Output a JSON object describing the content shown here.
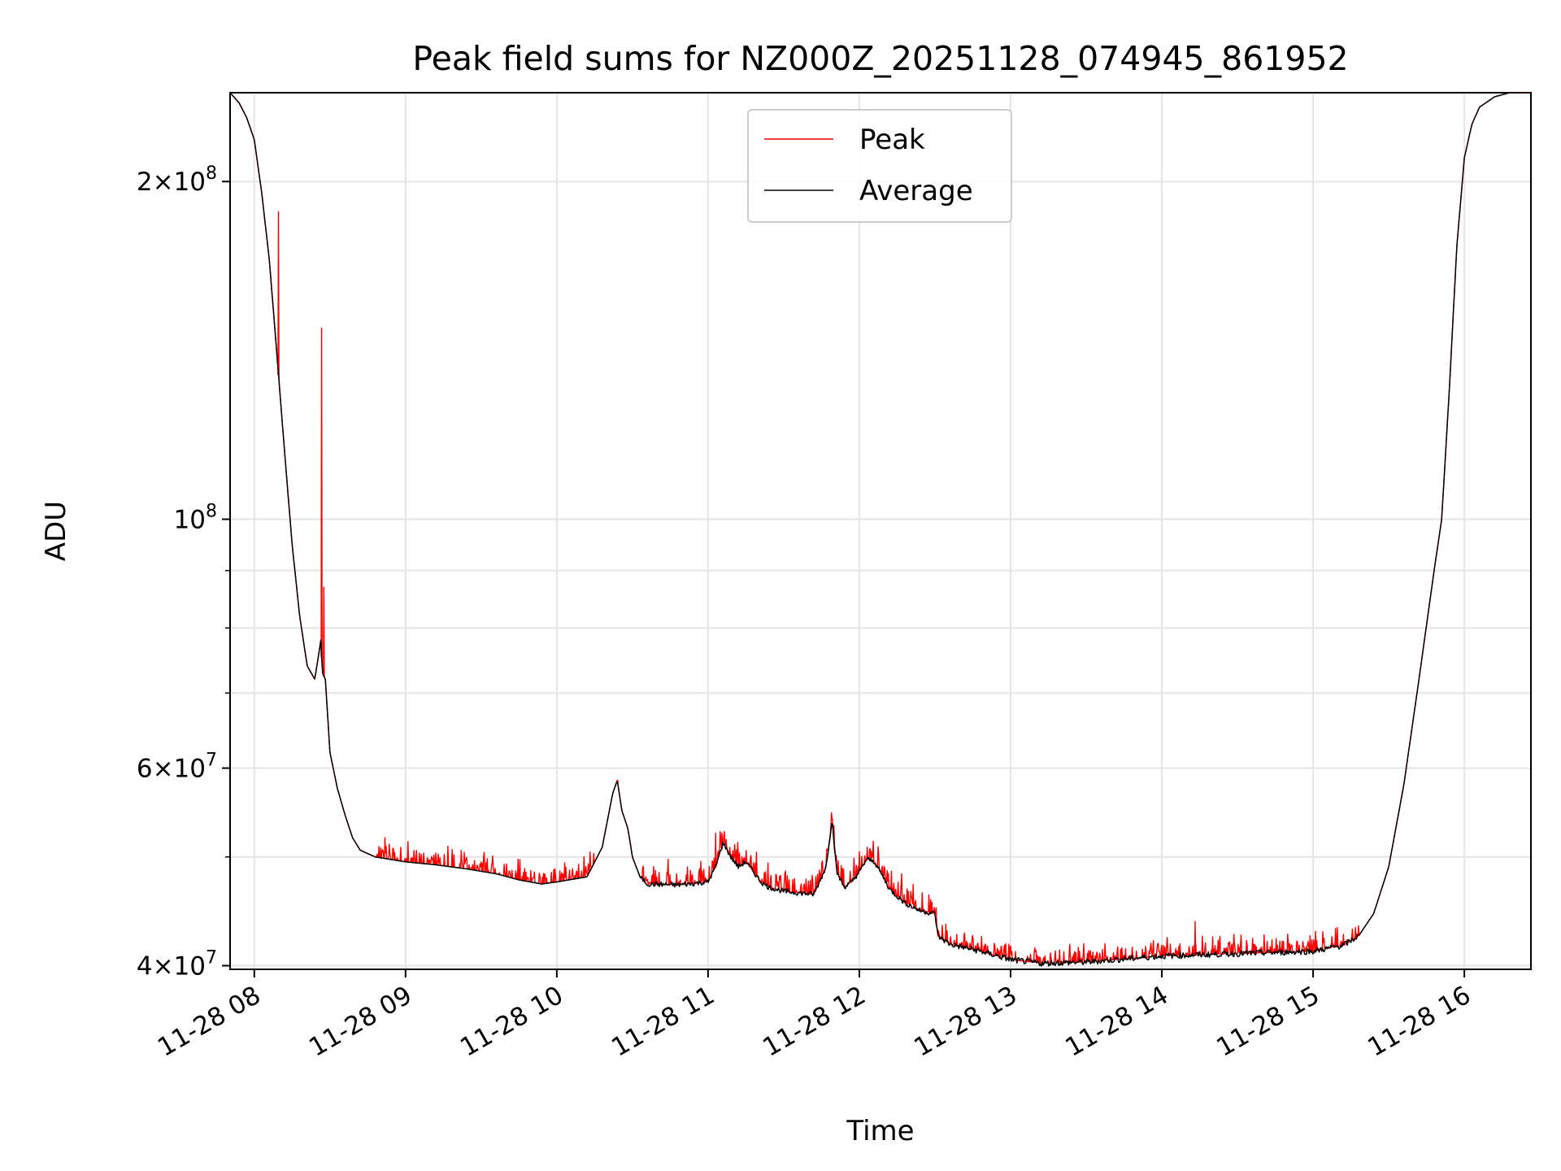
{
  "chart_data": {
    "type": "line",
    "scale_y": "log",
    "title": "Peak field sums for NZ000Z_20251128_074945_861952",
    "xlabel": "Time",
    "ylabel": "ADU",
    "xlim": [
      7.84,
      16.44
    ],
    "ylim": [
      39700000,
      240000000
    ],
    "grid": true,
    "legend_position": "top-center",
    "x_ticks": [
      {
        "value": 8,
        "label": "11-28 08"
      },
      {
        "value": 9,
        "label": "11-28 09"
      },
      {
        "value": 10,
        "label": "11-28 10"
      },
      {
        "value": 11,
        "label": "11-28 11"
      },
      {
        "value": 12,
        "label": "11-28 12"
      },
      {
        "value": 13,
        "label": "11-28 13"
      },
      {
        "value": 14,
        "label": "11-28 14"
      },
      {
        "value": 15,
        "label": "11-28 15"
      },
      {
        "value": 16,
        "label": "11-28 16"
      }
    ],
    "y_major_ticks": [
      {
        "value": 40000000,
        "mant": "4",
        "exp": "7"
      },
      {
        "value": 60000000,
        "mant": "6",
        "exp": "7"
      },
      {
        "value": 100000000,
        "mant": "",
        "exp": "8"
      },
      {
        "value": 200000000,
        "mant": "2",
        "exp": "8"
      }
    ],
    "y_minor_grid": [
      50000000,
      70000000,
      80000000,
      90000000
    ],
    "colors": {
      "peak": "#ff0000",
      "average": "#000000",
      "grid": "#e5e5e5"
    },
    "series": [
      {
        "name": "Average",
        "x": [
          7.84,
          7.9,
          7.95,
          8.0,
          8.05,
          8.1,
          8.15,
          8.2,
          8.25,
          8.3,
          8.35,
          8.4,
          8.44,
          8.45,
          8.47,
          8.5,
          8.55,
          8.6,
          8.65,
          8.7,
          8.8,
          9.0,
          9.2,
          9.4,
          9.6,
          9.75,
          9.9,
          10.0,
          10.2,
          10.3,
          10.37,
          10.4,
          10.43,
          10.47,
          10.5,
          10.55,
          10.6,
          10.8,
          11.0,
          11.05,
          11.1,
          11.15,
          11.2,
          11.25,
          11.3,
          11.35,
          11.4,
          11.5,
          11.7,
          11.78,
          11.82,
          11.85,
          11.9,
          11.95,
          12.0,
          12.05,
          12.1,
          12.15,
          12.2,
          12.3,
          12.4,
          12.5,
          12.52,
          12.6,
          12.8,
          13.0,
          13.2,
          13.5,
          14.0,
          14.5,
          15.0,
          15.2,
          15.3,
          15.4,
          15.5,
          15.6,
          15.7,
          15.8,
          15.85,
          15.9,
          15.95,
          16.0,
          16.05,
          16.1,
          16.2,
          16.3,
          16.44
        ],
        "values": [
          240000000,
          235000000,
          228000000,
          218000000,
          195000000,
          170000000,
          140000000,
          115000000,
          95000000,
          82000000,
          74000000,
          72000000,
          78000000,
          73000000,
          72000000,
          62000000,
          57500000,
          54500000,
          52000000,
          50700000,
          50000000,
          49500000,
          49200000,
          48800000,
          48300000,
          47700000,
          47300000,
          47500000,
          48000000,
          51000000,
          57000000,
          58500000,
          55000000,
          53000000,
          50000000,
          48000000,
          47300000,
          47200000,
          47500000,
          49000000,
          51500000,
          50000000,
          49000000,
          49500000,
          48500000,
          47500000,
          47000000,
          46600000,
          46300000,
          49000000,
          54000000,
          48500000,
          47000000,
          47500000,
          48500000,
          49800000,
          49500000,
          48200000,
          46800000,
          45500000,
          44800000,
          44500000,
          42500000,
          41800000,
          41200000,
          40500000,
          40200000,
          40300000,
          40800000,
          41000000,
          41200000,
          41700000,
          42500000,
          44500000,
          49000000,
          58000000,
          72000000,
          90000000,
          100000000,
          130000000,
          175000000,
          210000000,
          225000000,
          233000000,
          238000000,
          240000000,
          240000000
        ]
      },
      {
        "name": "Peak",
        "spikes": [
          {
            "x": 8.16,
            "value": 188000000
          },
          {
            "x": 8.445,
            "value": 148000000
          },
          {
            "x": 8.46,
            "value": 87000000
          },
          {
            "x": 10.4,
            "value": 58500000
          },
          {
            "x": 11.05,
            "value": 52500000
          },
          {
            "x": 11.82,
            "value": 54000000
          },
          {
            "x": 14.22,
            "value": 43800000
          }
        ],
        "noise_ranges": [
          {
            "from": 8.8,
            "to": 10.25,
            "amplitude": 1300000
          },
          {
            "from": 10.55,
            "to": 12.55,
            "amplitude": 1500000
          },
          {
            "from": 12.55,
            "to": 15.3,
            "amplitude": 1000000
          }
        ]
      }
    ]
  }
}
